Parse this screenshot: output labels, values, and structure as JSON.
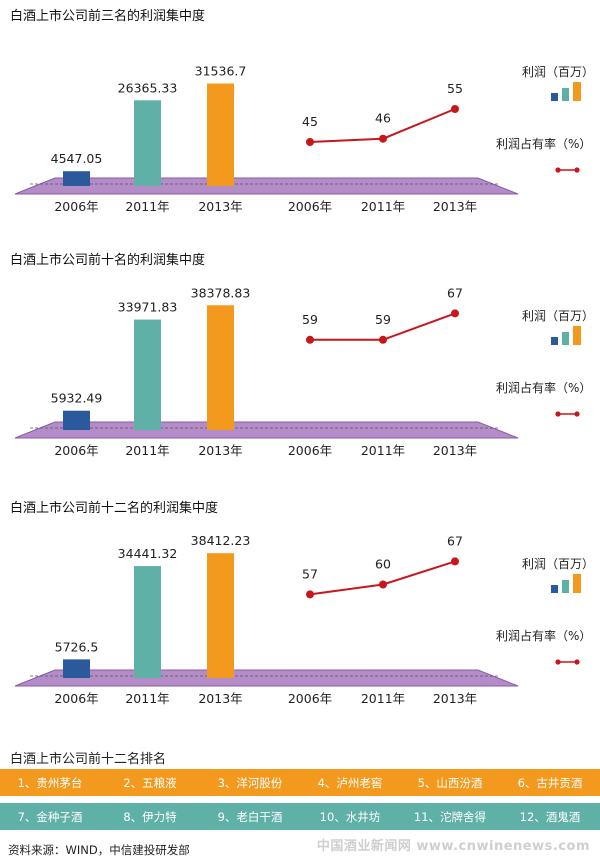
{
  "colors": {
    "bar": [
      "#2b5a9c",
      "#5fb1a8",
      "#f39a1e"
    ],
    "line": "#c8161d",
    "floor": "#b48cc8",
    "floor_edge": "#8a5aa8"
  },
  "chart_data": [
    {
      "type": "bar+line",
      "title": "白酒上市公司前三名的利润集中度",
      "categories": [
        "2006年",
        "2011年",
        "2013年"
      ],
      "bar_series": {
        "name": "利润（百万）",
        "values": [
          4547.05,
          26365.33,
          31536.7
        ],
        "labels": [
          "4547.05",
          "26365.33",
          "31536.7"
        ]
      },
      "line_series": {
        "name": "利润占有率（%）",
        "values": [
          45,
          46,
          55
        ],
        "labels": [
          "45",
          "46",
          "55"
        ]
      },
      "ylim_bar": [
        0,
        40000
      ],
      "legend": {
        "bar_label": "利润（百万）",
        "line_label": "利润占有率（%）"
      }
    },
    {
      "type": "bar+line",
      "title": "白酒上市公司前十名的利润集中度",
      "categories": [
        "2006年",
        "2011年",
        "2013年"
      ],
      "bar_series": {
        "name": "利润（百万）",
        "values": [
          5932.49,
          33971.83,
          38378.83
        ],
        "labels": [
          "5932.49",
          "33971.83",
          "38378.83"
        ]
      },
      "line_series": {
        "name": "利润占有率（%）",
        "values": [
          59,
          59,
          67
        ],
        "labels": [
          "59",
          "59",
          "67"
        ]
      },
      "ylim_bar": [
        0,
        40000
      ],
      "legend": {
        "bar_label": "利润（百万）",
        "line_label": "利润占有率（%）"
      }
    },
    {
      "type": "bar+line",
      "title": "白酒上市公司前十二名的利润集中度",
      "categories": [
        "2006年",
        "2011年",
        "2013年"
      ],
      "bar_series": {
        "name": "利润（百万）",
        "values": [
          5726.5,
          34441.32,
          38412.23
        ],
        "labels": [
          "5726.5",
          "34441.32",
          "38412.23"
        ]
      },
      "line_series": {
        "name": "利润占有率（%）",
        "values": [
          57,
          60,
          67
        ],
        "labels": [
          "57",
          "60",
          "67"
        ]
      },
      "ylim_bar": [
        0,
        40000
      ],
      "legend": {
        "bar_label": "利润（百万）",
        "line_label": "利润占有率（%）"
      }
    }
  ],
  "ranking": {
    "title": "白酒上市公司前十二名排名",
    "row1": [
      "1、贵州茅台",
      "2、五粮液",
      "3、洋河股份",
      "4、泸州老窖",
      "5、山西汾酒",
      "6、古井贡酒"
    ],
    "row2": [
      "7、金种子酒",
      "8、伊力特",
      "9、老白干酒",
      "10、水井坊",
      "11、沱牌舍得",
      "12、酒鬼酒"
    ]
  },
  "source": "资料来源：WIND，中信建投研发部",
  "watermark": "中国酒业新闻网 www.cnwinenews.com"
}
